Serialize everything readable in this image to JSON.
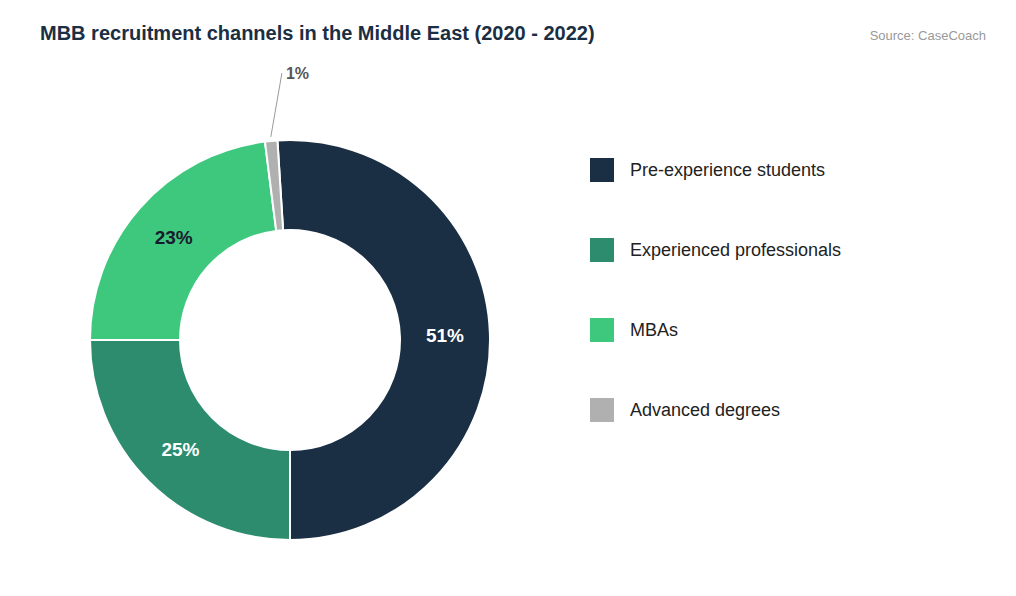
{
  "chart_data": {
    "type": "donut",
    "title": "MBB recruitment channels in the Middle East (2020 - 2022)",
    "annotations": [
      "Source: CaseCoach"
    ],
    "categories": [
      "Pre-experience students",
      "Experienced professionals",
      "MBAs",
      "Advanced degrees"
    ],
    "values": [
      51,
      25,
      23,
      1
    ],
    "value_labels": [
      "51%",
      "25%",
      "23%",
      "1%"
    ],
    "colors": [
      "#1a2e44",
      "#2d8c6e",
      "#3ec87e",
      "#b0b0b0"
    ],
    "data_labels": true,
    "legend": "right"
  }
}
